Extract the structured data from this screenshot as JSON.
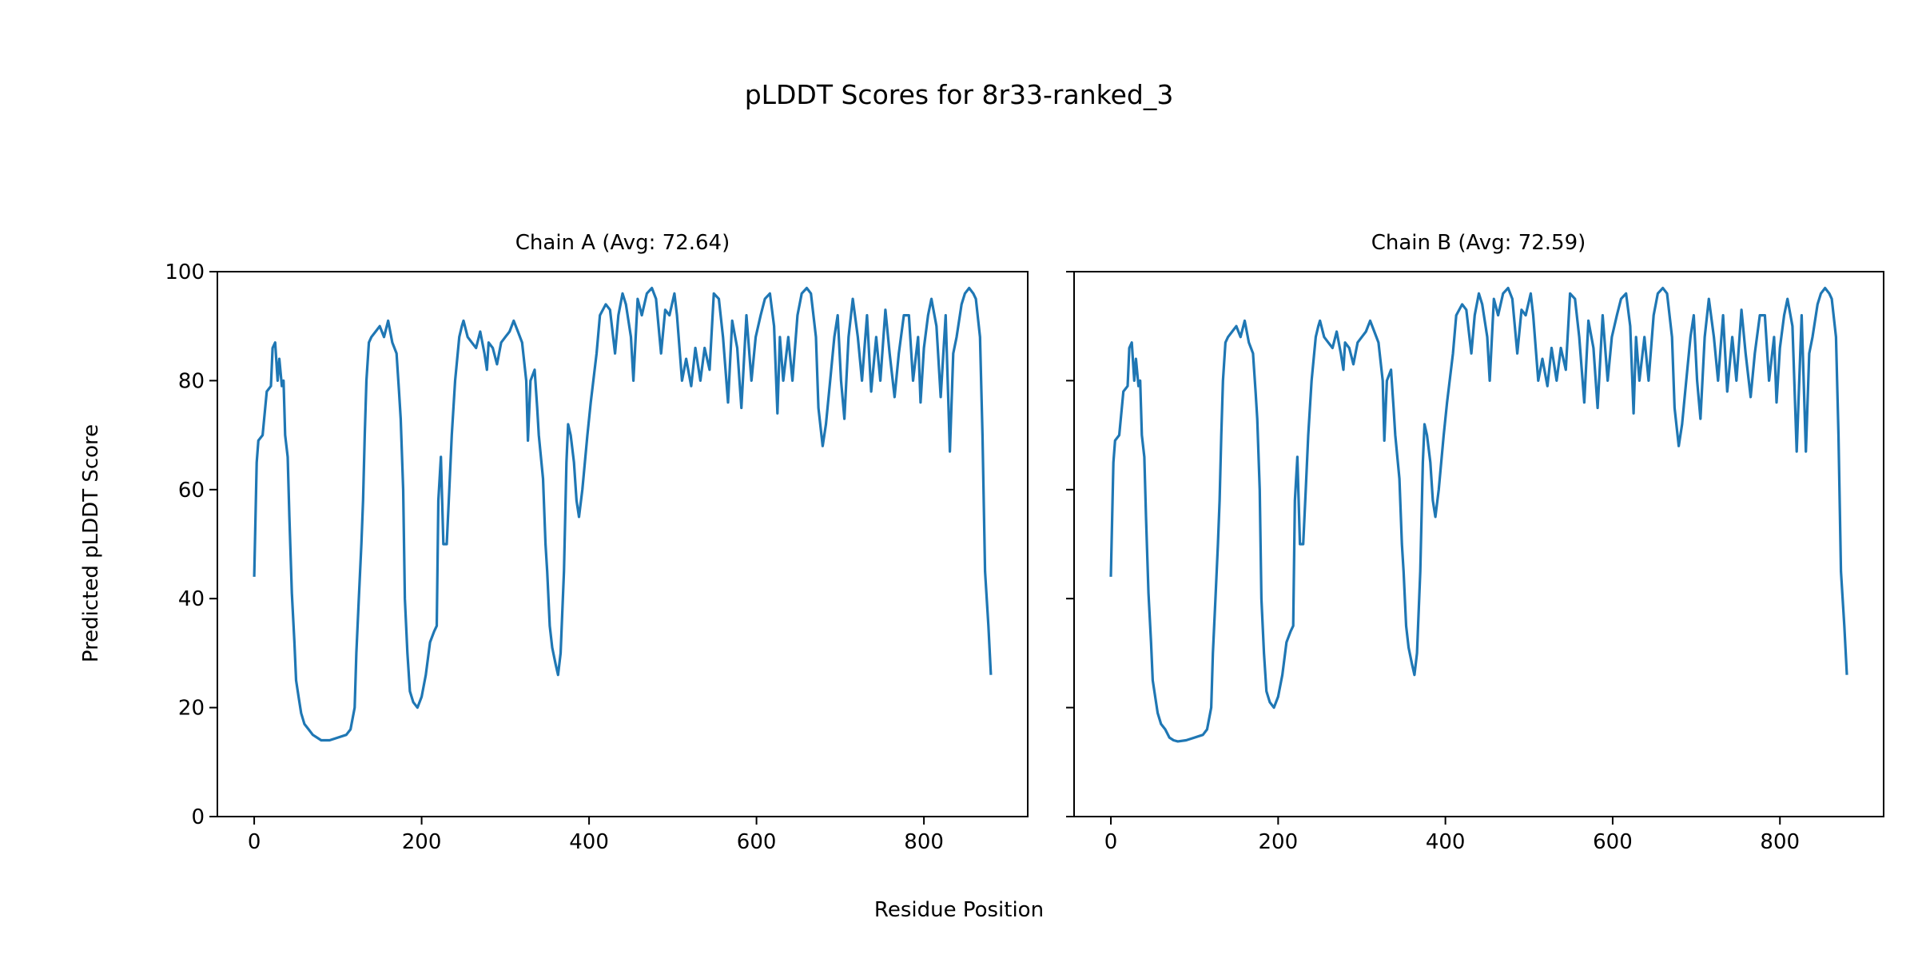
{
  "chart_data": {
    "type": "line",
    "title": "pLDDT Scores for 8r33-ranked_3",
    "xlabel": "Residue Position",
    "ylabel": "Predicted pLDDT Score",
    "ylim": [
      0,
      100
    ],
    "xlim": [
      -44,
      924
    ],
    "xticks": [
      0,
      200,
      400,
      600,
      800
    ],
    "yticks": [
      0,
      20,
      40,
      60,
      80,
      100
    ],
    "line_color": "#1f77b4",
    "grid": false,
    "panels": [
      {
        "title": "Chain A (Avg: 72.64)",
        "x": [
          0,
          3,
          5,
          10,
          15,
          20,
          22,
          25,
          28,
          30,
          33,
          35,
          37,
          40,
          42,
          45,
          48,
          50,
          53,
          56,
          60,
          65,
          70,
          75,
          80,
          90,
          100,
          110,
          115,
          120,
          122,
          125,
          128,
          130,
          132,
          134,
          137,
          140,
          145,
          150,
          155,
          160,
          165,
          170,
          173,
          175,
          178,
          180,
          183,
          186,
          190,
          195,
          200,
          205,
          210,
          215,
          218,
          220,
          223,
          226,
          230,
          233,
          236,
          240,
          245,
          248,
          250,
          255,
          260,
          265,
          270,
          275,
          278,
          280,
          285,
          290,
          295,
          300,
          305,
          310,
          315,
          320,
          325,
          327,
          330,
          335,
          338,
          340,
          345,
          348,
          350,
          353,
          356,
          360,
          363,
          366,
          370,
          373,
          375,
          378,
          382,
          385,
          388,
          392,
          398,
          402,
          409,
          413,
          420,
          425,
          431,
          435,
          440,
          444,
          450,
          453,
          458,
          463,
          469,
          475,
          480,
          486,
          491,
          496,
          502,
          505,
          511,
          516,
          522,
          527,
          533,
          538,
          544,
          549,
          555,
          560,
          566,
          571,
          577,
          582,
          588,
          594,
          599,
          605,
          610,
          616,
          621,
          625,
          628,
          632,
          638,
          643,
          649,
          654,
          660,
          665,
          671,
          674,
          679,
          683,
          688,
          693,
          697,
          701,
          705,
          710,
          715,
          721,
          726,
          732,
          737,
          743,
          748,
          754,
          759,
          765,
          770,
          776,
          782,
          787,
          793,
          796,
          800,
          805,
          809,
          815,
          820,
          826,
          831,
          835,
          839,
          845,
          849,
          854,
          859,
          862,
          867,
          870,
          873,
          877,
          880
        ],
        "y": [
          44,
          65,
          69,
          70,
          78,
          79,
          86,
          87,
          80,
          84,
          79,
          80,
          70,
          66,
          55,
          41,
          32,
          25,
          22,
          19,
          17,
          16,
          15,
          14.5,
          14,
          14,
          14.5,
          15,
          16,
          20,
          30,
          40,
          50,
          58,
          70,
          80,
          87,
          88,
          89,
          90,
          88,
          91,
          87,
          85,
          78,
          73,
          60,
          40,
          30,
          23,
          21,
          20,
          22,
          26,
          32,
          34,
          35,
          58,
          66,
          50,
          50,
          60,
          70,
          80,
          88,
          90,
          91,
          88,
          87,
          86,
          89,
          85,
          82,
          87,
          86,
          83,
          87,
          88,
          89,
          91,
          89,
          87,
          80,
          69,
          80,
          82,
          75,
          70,
          62,
          50,
          45,
          35,
          31,
          28,
          26,
          30,
          45,
          65,
          72,
          70,
          65,
          58,
          55,
          60,
          70,
          76,
          85,
          92,
          94,
          93,
          85,
          92,
          96,
          94,
          88,
          80,
          95,
          92,
          96,
          97,
          95,
          85,
          93,
          92,
          96,
          92,
          80,
          84,
          79,
          86,
          80,
          86,
          82,
          96,
          95,
          88,
          76,
          91,
          86,
          75,
          92,
          80,
          88,
          92,
          95,
          96,
          90,
          74,
          88,
          80,
          88,
          80,
          92,
          96,
          97,
          96,
          88,
          75,
          68,
          72,
          80,
          88,
          92,
          80,
          73,
          88,
          95,
          88,
          80,
          92,
          78,
          88,
          80,
          93,
          85,
          77,
          85,
          92,
          92,
          80,
          88,
          76,
          86,
          92,
          95,
          90,
          77,
          92,
          67,
          85,
          88,
          94,
          96,
          97,
          96,
          95,
          88,
          70,
          45,
          35,
          26
        ]
      },
      {
        "title": "Chain B (Avg: 72.59)",
        "x": [
          0,
          3,
          5,
          10,
          15,
          20,
          22,
          25,
          28,
          30,
          33,
          35,
          37,
          40,
          42,
          45,
          48,
          50,
          53,
          56,
          60,
          65,
          70,
          75,
          80,
          90,
          100,
          110,
          115,
          120,
          122,
          125,
          128,
          130,
          132,
          134,
          137,
          140,
          145,
          150,
          155,
          160,
          165,
          170,
          173,
          175,
          178,
          180,
          183,
          186,
          190,
          195,
          200,
          205,
          210,
          215,
          218,
          220,
          223,
          226,
          230,
          233,
          236,
          240,
          245,
          248,
          250,
          255,
          260,
          265,
          270,
          275,
          278,
          280,
          285,
          290,
          295,
          300,
          305,
          310,
          315,
          320,
          325,
          327,
          330,
          335,
          338,
          340,
          345,
          348,
          350,
          353,
          356,
          360,
          363,
          366,
          370,
          373,
          375,
          378,
          382,
          385,
          388,
          392,
          398,
          402,
          409,
          413,
          420,
          425,
          431,
          435,
          440,
          444,
          450,
          453,
          458,
          463,
          469,
          475,
          480,
          486,
          491,
          496,
          502,
          505,
          511,
          516,
          522,
          527,
          533,
          538,
          544,
          549,
          555,
          560,
          566,
          571,
          577,
          582,
          588,
          594,
          599,
          605,
          610,
          616,
          621,
          625,
          628,
          632,
          638,
          643,
          649,
          654,
          660,
          665,
          671,
          674,
          679,
          683,
          688,
          693,
          697,
          701,
          705,
          710,
          715,
          721,
          726,
          732,
          737,
          743,
          748,
          754,
          759,
          765,
          770,
          776,
          782,
          787,
          793,
          796,
          800,
          805,
          809,
          815,
          820,
          826,
          831,
          835,
          839,
          845,
          849,
          854,
          859,
          862,
          867,
          870,
          873,
          877,
          880
        ],
        "y": [
          44,
          65,
          69,
          70,
          78,
          79,
          86,
          87,
          80,
          84,
          79,
          80,
          70,
          66,
          55,
          41,
          32,
          25,
          22,
          19,
          17,
          16,
          14.5,
          14,
          13.8,
          14,
          14.5,
          15,
          16,
          20,
          30,
          40,
          50,
          58,
          70,
          80,
          87,
          88,
          89,
          90,
          88,
          91,
          87,
          85,
          78,
          73,
          60,
          40,
          30,
          23,
          21,
          20,
          22,
          26,
          32,
          34,
          35,
          58,
          66,
          50,
          50,
          60,
          70,
          80,
          88,
          90,
          91,
          88,
          87,
          86,
          89,
          85,
          82,
          87,
          86,
          83,
          87,
          88,
          89,
          91,
          89,
          87,
          80,
          69,
          80,
          82,
          75,
          70,
          62,
          50,
          45,
          35,
          31,
          28,
          26,
          30,
          45,
          65,
          72,
          70,
          65,
          58,
          55,
          60,
          70,
          76,
          85,
          92,
          94,
          93,
          85,
          92,
          96,
          94,
          88,
          80,
          95,
          92,
          96,
          97,
          95,
          85,
          93,
          92,
          96,
          92,
          80,
          84,
          79,
          86,
          80,
          86,
          82,
          96,
          95,
          88,
          76,
          91,
          86,
          75,
          92,
          80,
          88,
          92,
          95,
          96,
          90,
          74,
          88,
          80,
          88,
          80,
          92,
          96,
          97,
          96,
          88,
          75,
          68,
          72,
          80,
          88,
          92,
          80,
          73,
          88,
          95,
          88,
          80,
          92,
          78,
          88,
          80,
          93,
          85,
          77,
          85,
          92,
          92,
          80,
          88,
          76,
          86,
          92,
          95,
          90,
          67,
          92,
          67,
          85,
          88,
          94,
          96,
          97,
          96,
          95,
          88,
          70,
          45,
          35,
          26
        ]
      }
    ]
  }
}
